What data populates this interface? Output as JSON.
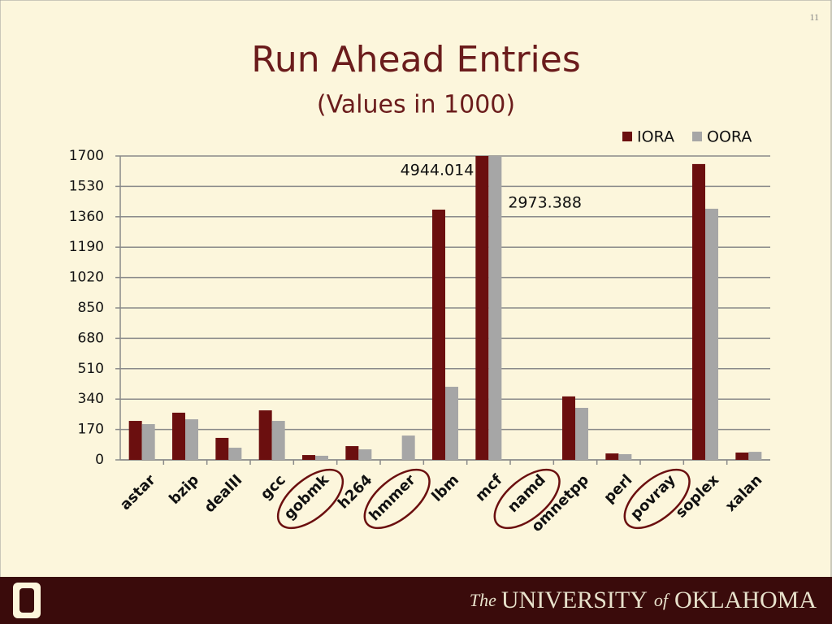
{
  "slide_number": "11",
  "footer": {
    "prefix": "The",
    "main": "UNIVERSITY",
    "of": "of",
    "state": "OKLAHOMA"
  },
  "chart_data": {
    "type": "bar",
    "title": "Run Ahead Entries",
    "subtitle": "(Values in 1000)",
    "categories": [
      "astar",
      "bzip",
      "dealII",
      "gcc",
      "gobmk",
      "h264",
      "hmmer",
      "lbm",
      "mcf",
      "namd",
      "omnetpp",
      "perl",
      "povray",
      "soplex",
      "xalan"
    ],
    "series": [
      {
        "name": "IORA",
        "color": "#6b0f0f",
        "values": [
          218,
          264,
          123,
          277,
          27,
          77,
          0,
          1400,
          4944.014,
          0,
          355,
          36,
          0,
          1655,
          41
        ],
        "value_labels": [
          null,
          null,
          null,
          null,
          null,
          null,
          null,
          null,
          "4944.014",
          null,
          null,
          null,
          null,
          null,
          null
        ]
      },
      {
        "name": "OORA",
        "color": "#a6a6a6",
        "values": [
          200,
          227,
          68,
          218,
          23,
          59,
          136,
          409,
          2973.388,
          0,
          291,
          32,
          0,
          1405,
          45
        ],
        "value_labels": [
          null,
          null,
          null,
          null,
          null,
          null,
          null,
          null,
          "2973.388",
          null,
          null,
          null,
          null,
          null,
          null
        ]
      }
    ],
    "ylim": [
      0,
      1700
    ],
    "yticks": [
      0,
      170,
      340,
      510,
      680,
      850,
      1020,
      1190,
      1360,
      1530,
      1700
    ],
    "grid": true,
    "legend": "top-right"
  }
}
